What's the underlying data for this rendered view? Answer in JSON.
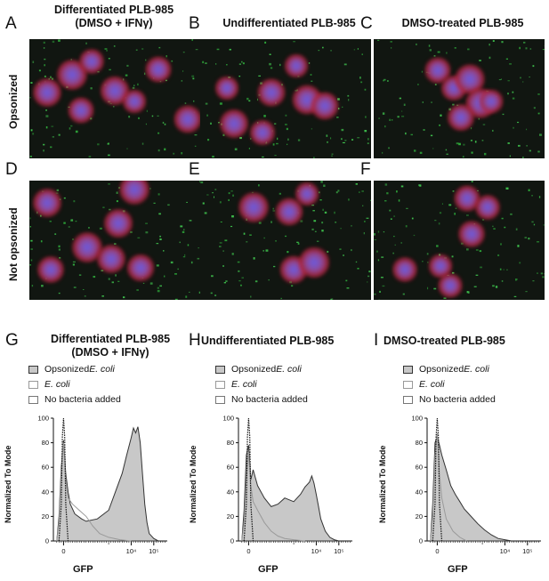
{
  "figure": {
    "top_panels": [
      {
        "letter": "A",
        "title_lines": [
          "Differentiated PLB-985",
          "(DMSO + IFNγ)"
        ]
      },
      {
        "letter": "B",
        "title_lines": [
          "Undifferentiated PLB-985"
        ]
      },
      {
        "letter": "C",
        "title_lines": [
          "DMSO-treated PLB-985"
        ]
      }
    ],
    "second_row_letters": [
      "D",
      "E",
      "F"
    ],
    "row_labels": {
      "top": "Opsonized",
      "bottom": "Not opsonized"
    },
    "hist_panels": [
      {
        "letter": "G",
        "title_lines": [
          "Differentiated PLB-985",
          "(DMSO + IFNγ)"
        ]
      },
      {
        "letter": "H",
        "title_lines": [
          "Undifferentiated PLB-985"
        ]
      },
      {
        "letter": "I",
        "title_lines": [
          "DMSO-treated PLB-985"
        ]
      }
    ],
    "legend": {
      "opsonized_prefix": "Opsonized ",
      "ecoli": "E. coli",
      "no_bacteria": "No bacteria added"
    },
    "colors": {
      "opsonized_fill": "#c8c8c8",
      "outline": "#333333",
      "ecoli_line": "#9a9a9a"
    }
  },
  "chart_data": [
    {
      "type": "area",
      "xlabel": "GFP",
      "ylabel": "Normalized To Mode",
      "ylim": [
        0,
        100
      ],
      "yticks": [
        0,
        20,
        40,
        60,
        80,
        100
      ],
      "xtick_labels": [
        "0",
        "10⁴",
        "10⁵"
      ],
      "series": [
        {
          "name": "Opsonized E. coli",
          "x": [
            -0.3,
            -0.2,
            -0.1,
            0,
            0.1,
            0.2,
            0.3,
            0.5,
            0.8,
            1,
            1.5,
            2,
            2.3,
            2.6,
            2.8,
            3,
            3.1,
            3.2,
            3.3,
            3.4,
            3.5,
            3.6,
            3.7,
            3.8,
            4,
            4.2
          ],
          "y": [
            0,
            20,
            60,
            82,
            55,
            40,
            30,
            22,
            18,
            16,
            18,
            25,
            40,
            55,
            70,
            84,
            92,
            88,
            93,
            80,
            55,
            30,
            15,
            6,
            2,
            0
          ]
        },
        {
          "name": "E. coli",
          "x": [
            -0.3,
            -0.2,
            -0.1,
            0,
            0.1,
            0.2,
            0.4,
            0.7,
            1,
            1.3,
            1.6,
            2,
            2.5,
            3
          ],
          "y": [
            0,
            15,
            55,
            80,
            50,
            35,
            30,
            25,
            20,
            12,
            6,
            3,
            1,
            0
          ]
        },
        {
          "name": "No bacteria added",
          "x": [
            -0.2,
            -0.1,
            -0.05,
            0,
            0.05,
            0.1,
            0.2
          ],
          "y": [
            0,
            30,
            85,
            100,
            85,
            30,
            0
          ]
        }
      ]
    },
    {
      "type": "area",
      "xlabel": "GFP",
      "ylabel": "Normalized To Mode",
      "ylim": [
        0,
        100
      ],
      "yticks": [
        0,
        20,
        40,
        60,
        80,
        100
      ],
      "xtick_labels": [
        "0",
        "10⁴",
        "10⁵"
      ],
      "series": [
        {
          "name": "Opsonized E. coli",
          "x": [
            -0.3,
            -0.2,
            -0.1,
            0,
            0.1,
            0.2,
            0.4,
            0.7,
            1,
            1.3,
            1.6,
            2,
            2.3,
            2.5,
            2.7,
            2.8,
            2.9,
            3,
            3.1,
            3.2,
            3.4,
            3.6,
            3.8,
            4
          ],
          "y": [
            0,
            25,
            70,
            78,
            50,
            58,
            45,
            35,
            28,
            30,
            35,
            32,
            38,
            44,
            48,
            53,
            47,
            38,
            28,
            18,
            8,
            3,
            1,
            0
          ]
        },
        {
          "name": "E. coli",
          "x": [
            -0.3,
            -0.2,
            -0.1,
            0,
            0.1,
            0.2,
            0.4,
            0.7,
            1,
            1.3,
            1.6,
            2,
            2.5
          ],
          "y": [
            0,
            15,
            50,
            72,
            45,
            32,
            25,
            15,
            8,
            4,
            2,
            1,
            0
          ]
        },
        {
          "name": "No bacteria added",
          "x": [
            -0.2,
            -0.1,
            -0.05,
            0,
            0.05,
            0.1,
            0.2
          ],
          "y": [
            0,
            30,
            85,
            100,
            85,
            30,
            0
          ]
        }
      ]
    },
    {
      "type": "area",
      "xlabel": "GFP",
      "ylabel": "Normalized To Mode",
      "ylim": [
        0,
        100
      ],
      "yticks": [
        0,
        20,
        40,
        60,
        80,
        100
      ],
      "xtick_labels": [
        "0",
        "10⁴",
        "10⁵"
      ],
      "series": [
        {
          "name": "Opsonized E. coli",
          "x": [
            -0.3,
            -0.2,
            -0.1,
            0,
            0.1,
            0.2,
            0.4,
            0.6,
            0.8,
            1,
            1.2,
            1.5,
            1.8,
            2.1,
            2.4,
            2.7,
            3,
            3.3
          ],
          "y": [
            0,
            30,
            80,
            85,
            78,
            70,
            58,
            45,
            38,
            32,
            26,
            20,
            14,
            9,
            5,
            2,
            1,
            0
          ]
        },
        {
          "name": "E. coli",
          "x": [
            -0.3,
            -0.2,
            -0.1,
            0,
            0.1,
            0.2,
            0.4,
            0.7,
            1,
            1.3
          ],
          "y": [
            0,
            20,
            70,
            88,
            55,
            35,
            18,
            8,
            3,
            0
          ]
        },
        {
          "name": "No bacteria added",
          "x": [
            -0.2,
            -0.1,
            -0.05,
            0,
            0.05,
            0.1,
            0.2
          ],
          "y": [
            0,
            30,
            85,
            100,
            85,
            30,
            0
          ]
        }
      ]
    }
  ]
}
